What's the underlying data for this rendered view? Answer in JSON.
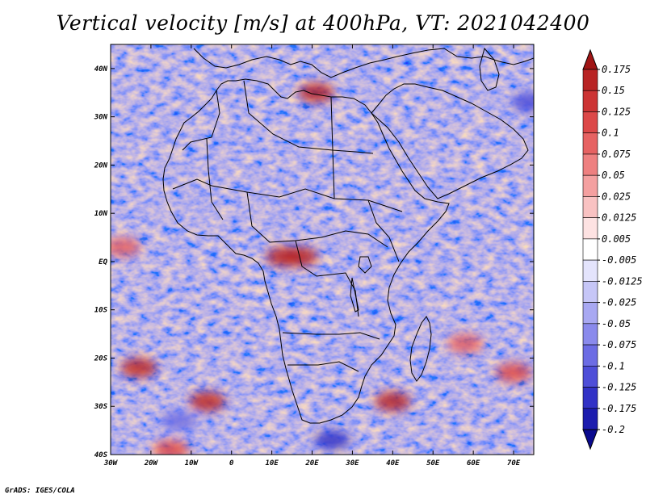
{
  "title": "Vertical velocity [m/s] at 400hPa, VT: 2021042400",
  "credit": "GrADS: IGES/COLA",
  "lat_labels": [
    "40N",
    "30N",
    "20N",
    "10N",
    "EQ",
    "10S",
    "20S",
    "30S",
    "40S"
  ],
  "lon_labels": [
    "30W",
    "20W",
    "10W",
    "0",
    "10E",
    "20E",
    "30E",
    "40E",
    "50E",
    "60E",
    "70E"
  ],
  "colorbar": {
    "labels": [
      "0.175",
      "0.15",
      "0.125",
      "0.1",
      "0.075",
      "0.05",
      "0.025",
      "0.0125",
      "0.005",
      "-0.005",
      "-0.0125",
      "-0.025",
      "-0.05",
      "-0.075",
      "-0.1",
      "-0.125",
      "-0.175",
      "-0.2"
    ],
    "colors": [
      "#a01515",
      "#b82424",
      "#cc3434",
      "#dc4848",
      "#e66262",
      "#ee8080",
      "#f4a0a0",
      "#f9c2c2",
      "#fde2e2",
      "#ffffff",
      "#e4e4fc",
      "#c6c6f7",
      "#a8a8f2",
      "#8a8aec",
      "#6c6ce4",
      "#4e4ed8",
      "#3232c6",
      "#1c1cae",
      "#0a0a8e"
    ]
  },
  "hotspots": [
    {
      "lon": 21,
      "lat": 35,
      "value": 0.15
    },
    {
      "lon": 13,
      "lat": 1,
      "value": 0.15
    },
    {
      "lon": 17,
      "lat": 1,
      "value": 0.15
    },
    {
      "lon": 40,
      "lat": -29,
      "value": 0.15
    },
    {
      "lon": -23,
      "lat": -22,
      "value": 0.15
    },
    {
      "lon": -6,
      "lat": -29,
      "value": 0.15
    },
    {
      "lon": 58,
      "lat": -17,
      "value": 0.075
    },
    {
      "lon": -27,
      "lat": 3,
      "value": 0.075
    },
    {
      "lon": 70,
      "lat": -23,
      "value": 0.1
    },
    {
      "lon": -15,
      "lat": -39,
      "value": 0.1
    },
    {
      "lon": 25,
      "lat": -37,
      "value": -0.175
    },
    {
      "lon": -13,
      "lat": -33,
      "value": -0.1
    },
    {
      "lon": 74,
      "lat": 33,
      "value": -0.125
    }
  ]
}
